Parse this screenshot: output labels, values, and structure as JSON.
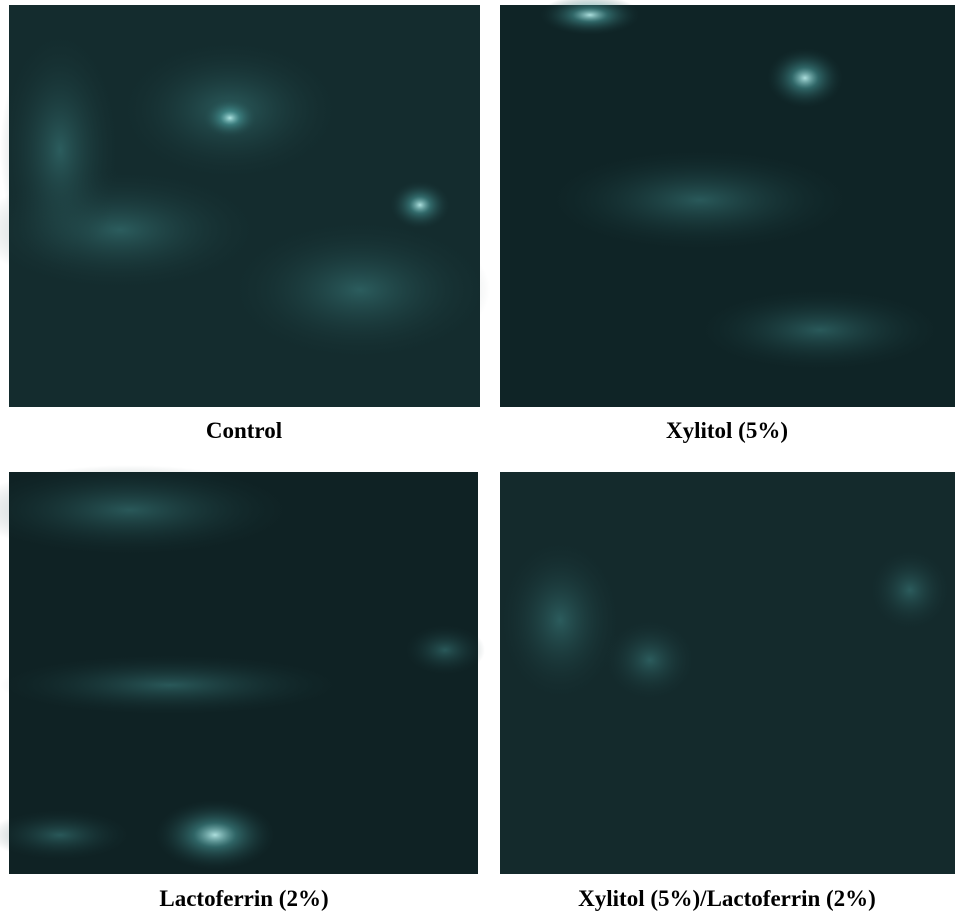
{
  "panels": [
    {
      "caption": "Control"
    },
    {
      "caption": "Xylitol (5%)"
    },
    {
      "caption": "Lactoferrin (2%)"
    },
    {
      "caption": "Xylitol (5%)/Lactoferrin (2%)"
    }
  ]
}
